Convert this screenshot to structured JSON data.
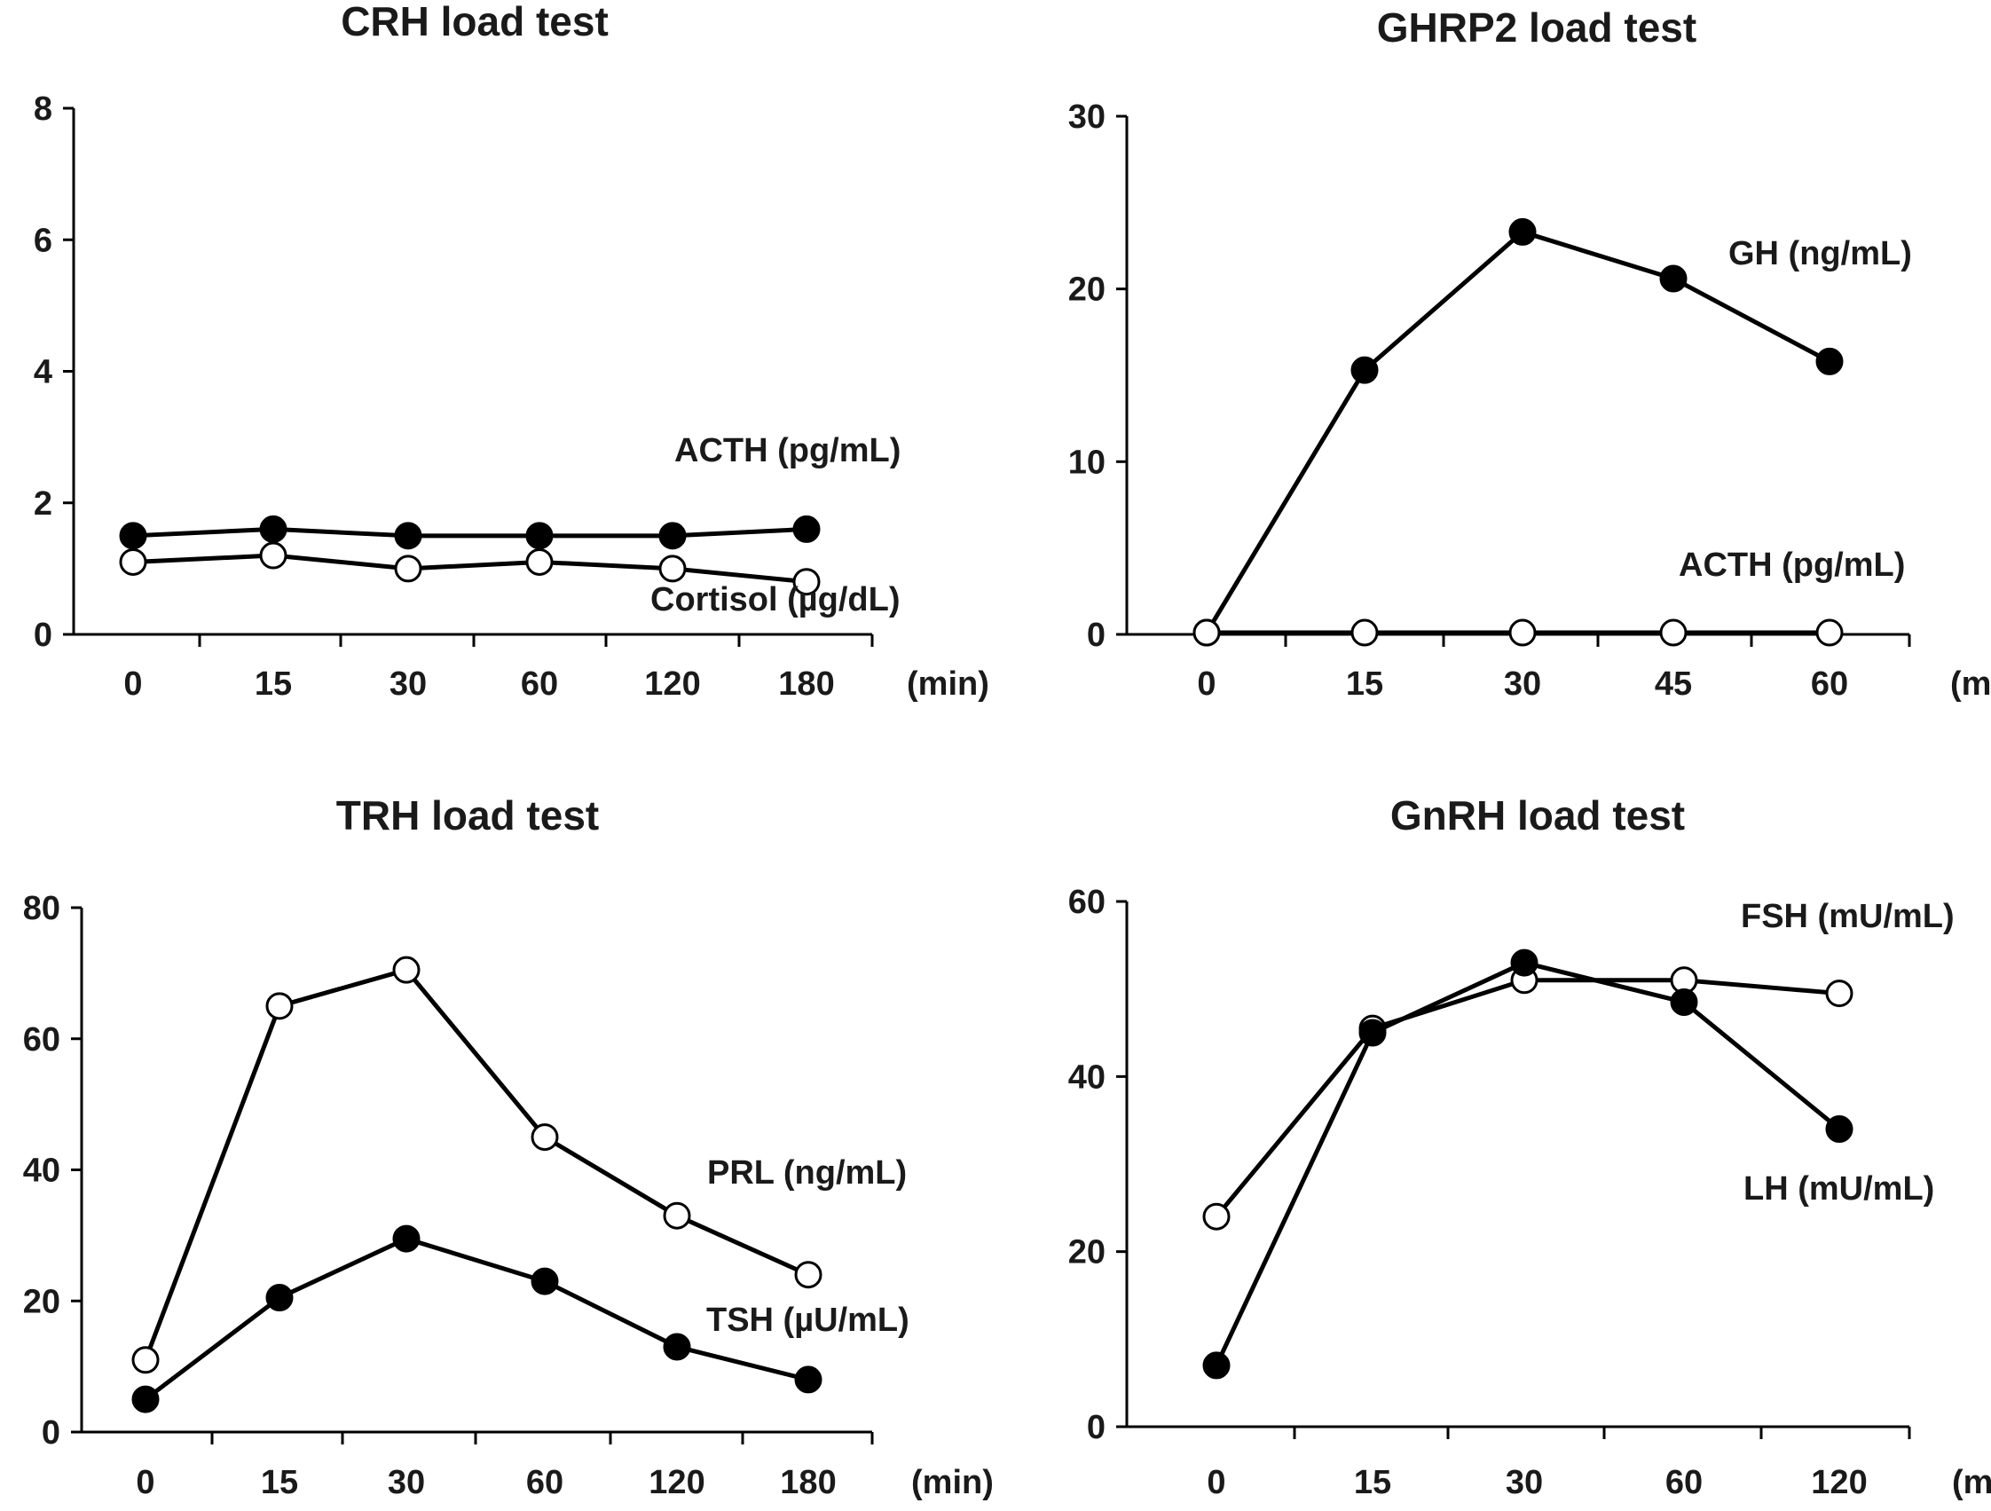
{
  "chart_data": [
    {
      "type": "line",
      "title": "CRH load test",
      "categories": [
        "0",
        "15",
        "30",
        "60",
        "120",
        "180"
      ],
      "x_unit": "(min)",
      "yticks": [
        "0",
        "2",
        "4",
        "6",
        "8"
      ],
      "ylim": [
        0,
        8
      ],
      "series": [
        {
          "name": "ACTH (pg/mL)",
          "marker": "filled",
          "values": [
            1.5,
            1.6,
            1.5,
            1.5,
            1.5,
            1.6
          ]
        },
        {
          "name": "Cortisol (µg/dL)",
          "marker": "open",
          "values": [
            1.1,
            1.2,
            1.0,
            1.1,
            1.0,
            0.8
          ]
        }
      ]
    },
    {
      "type": "line",
      "title": "GHRP2 load test",
      "categories": [
        "0",
        "15",
        "30",
        "45",
        "60"
      ],
      "x_unit": "(min)",
      "yticks": [
        "0",
        "10",
        "20",
        "30"
      ],
      "ylim": [
        0,
        30
      ],
      "series": [
        {
          "name": "GH (ng/mL)",
          "marker": "filled",
          "values": [
            0.1,
            15.3,
            23.3,
            20.6,
            15.8
          ]
        },
        {
          "name": "ACTH (pg/mL)",
          "marker": "open",
          "values": [
            0.1,
            0.1,
            0.1,
            0.1,
            0.1
          ]
        }
      ]
    },
    {
      "type": "line",
      "title": "TRH load test",
      "categories": [
        "0",
        "15",
        "30",
        "60",
        "120",
        "180"
      ],
      "x_unit": "(min)",
      "yticks": [
        "0",
        "20",
        "40",
        "60",
        "80"
      ],
      "ylim": [
        0,
        80
      ],
      "series": [
        {
          "name": "PRL (ng/mL)",
          "marker": "open",
          "values": [
            11,
            65,
            70.5,
            45,
            33,
            24
          ]
        },
        {
          "name": "TSH (µU/mL)",
          "marker": "filled",
          "values": [
            5,
            20.5,
            29.5,
            23,
            13,
            8
          ]
        }
      ]
    },
    {
      "type": "line",
      "title": "GnRH load test",
      "categories": [
        "0",
        "15",
        "30",
        "60",
        "120"
      ],
      "x_unit": "(min)",
      "yticks": [
        "0",
        "20",
        "40",
        "60"
      ],
      "ylim": [
        0,
        60
      ],
      "series": [
        {
          "name": "FSH (mU/mL)",
          "marker": "open",
          "values": [
            24,
            45.5,
            51,
            51,
            49.5
          ]
        },
        {
          "name": "LH (mU/mL)",
          "marker": "filled",
          "values": [
            7,
            45,
            53,
            48.5,
            34
          ]
        }
      ]
    }
  ]
}
